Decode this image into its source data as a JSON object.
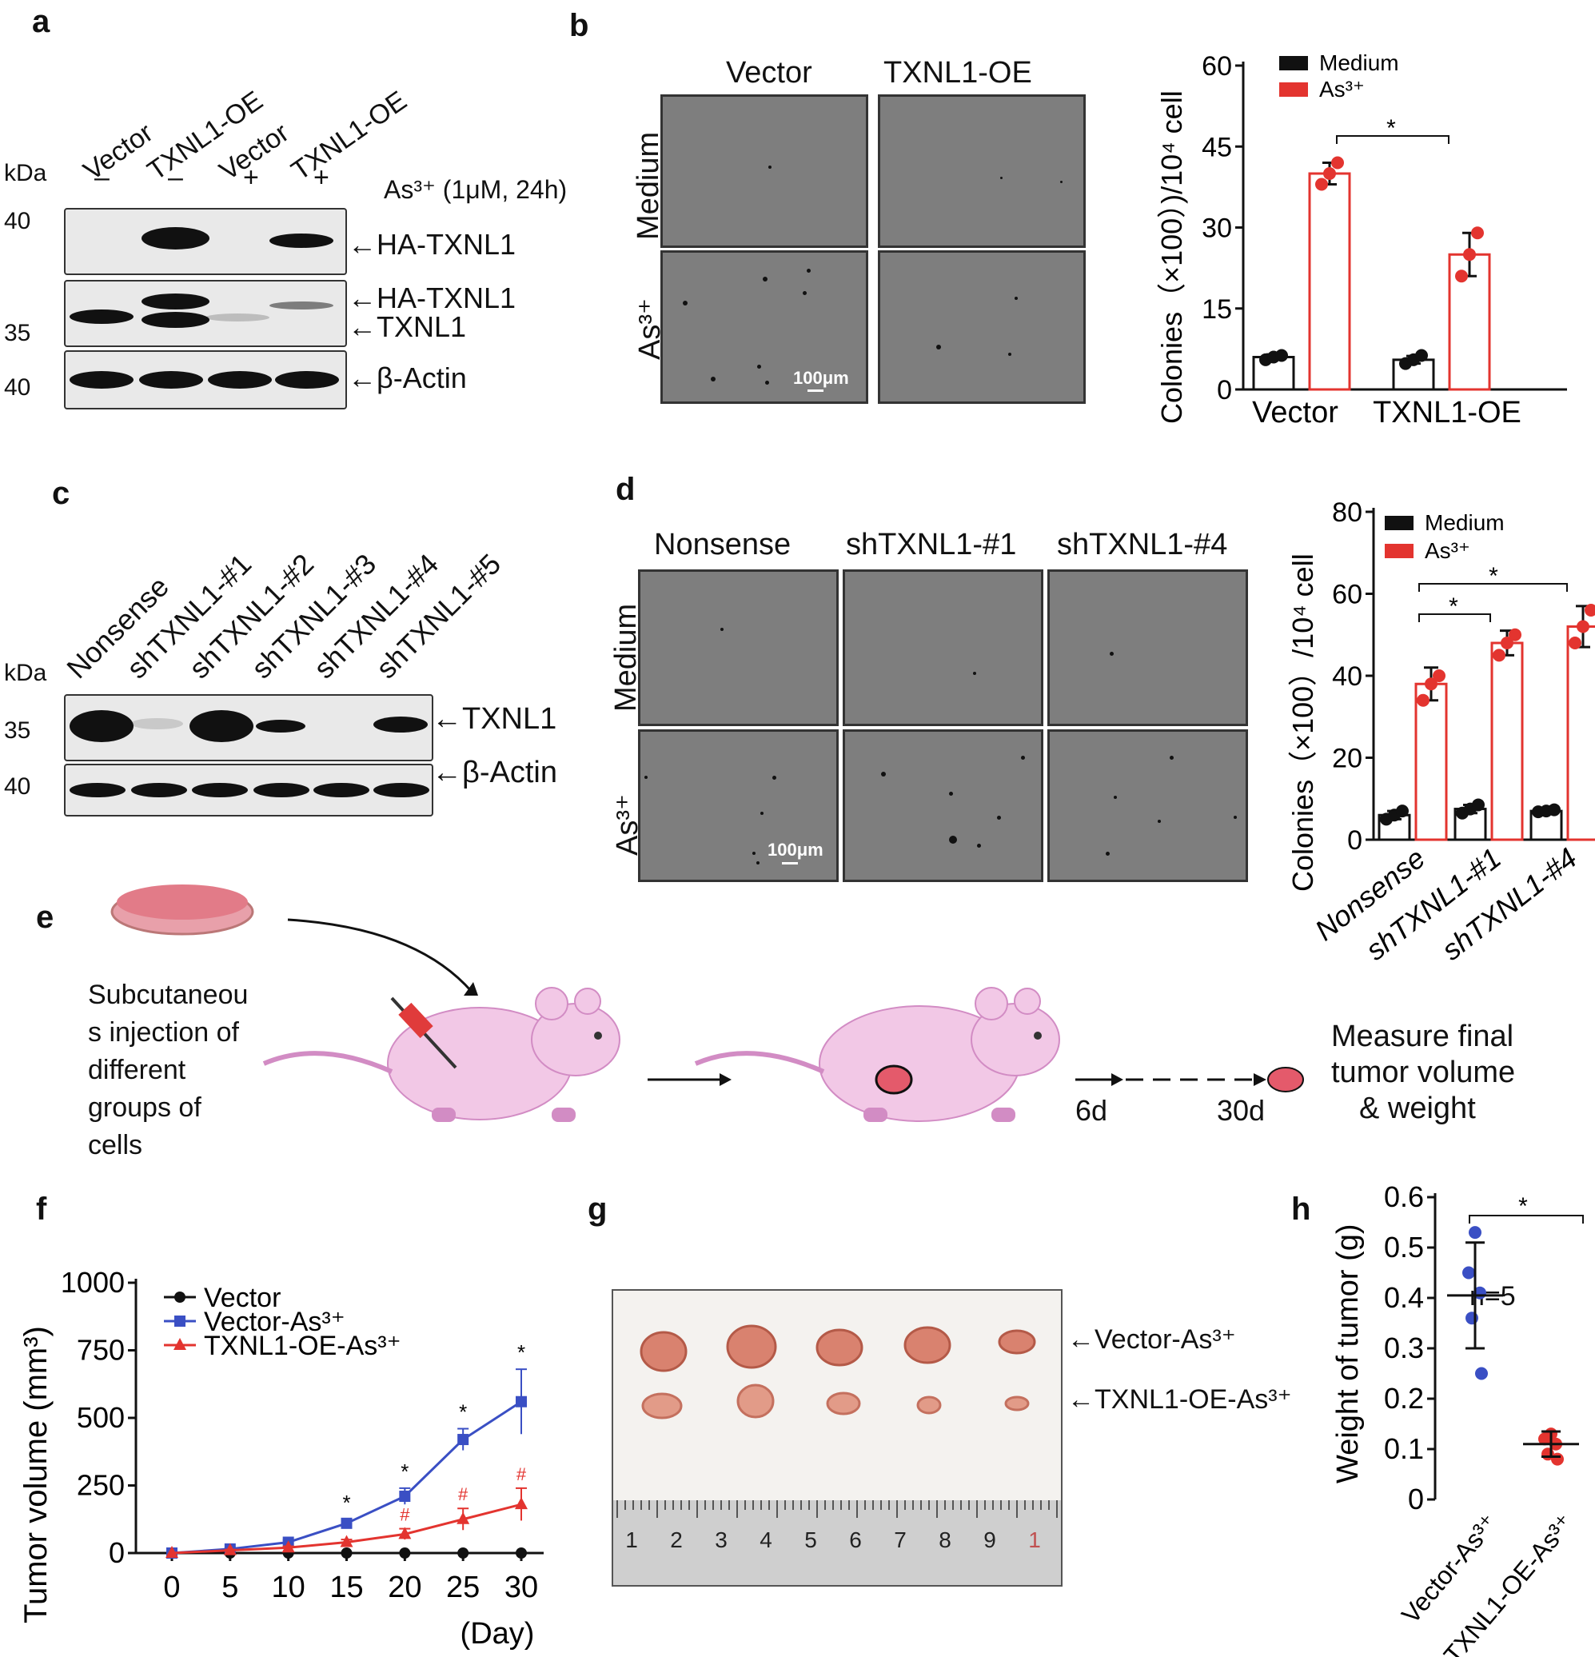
{
  "panels": {
    "a": {
      "label": "a",
      "lanes": [
        "Vector",
        "TXNL1-OE",
        "Vector",
        "TXNL1-OE"
      ],
      "signs": [
        "–",
        "–",
        "+",
        "+"
      ],
      "kda_title": "kDa",
      "treatment": "As³⁺ (1μM, 24h)",
      "markers": [
        "40",
        "35",
        "40"
      ],
      "band_labels": [
        "HA-TXNL1",
        "HA-TXNL1",
        "TXNL1",
        "β-Actin"
      ]
    },
    "b": {
      "label": "b",
      "columns": [
        "Vector",
        "TXNL1-OE"
      ],
      "rows": [
        "Medium",
        "As³⁺"
      ],
      "scale_bar": "100μm"
    },
    "c": {
      "label": "c",
      "lanes": [
        "Nonsense",
        "shTXNL1-#1",
        "shTXNL1-#2",
        "shTXNL1-#3",
        "shTXNL1-#4",
        "shTXNL1-#5"
      ],
      "kda_title": "kDa",
      "markers": [
        "35",
        "40"
      ],
      "band_labels": [
        "TXNL1",
        "β-Actin"
      ]
    },
    "d": {
      "label": "d",
      "columns": [
        "Nonsense",
        "shTXNL1-#1",
        "shTXNL1-#4"
      ],
      "rows": [
        "Medium",
        "As³⁺"
      ],
      "scale_bar": "100μm"
    },
    "e": {
      "label": "e",
      "step1": "Subcutaneous injection of different groups of cells",
      "step1_lines": [
        "Subcutaneou",
        "s injection of",
        "different",
        "groups of",
        "cells"
      ],
      "day_a": "6d",
      "day_b": "30d",
      "final_lines": [
        "Measure final",
        "tumor volume",
        "& weight"
      ]
    },
    "f": {
      "label": "f"
    },
    "g": {
      "label": "g",
      "row_labels": [
        "Vector-As³⁺",
        "TXNL1-OE-As³⁺"
      ],
      "ruler_numbers": [
        "1",
        "2",
        "3",
        "4",
        "5",
        "6",
        "7",
        "8",
        "9",
        "1"
      ]
    },
    "h": {
      "label": "h",
      "n_label": "n=5"
    }
  },
  "colors": {
    "black_series": "#111111",
    "red_series": "#e3342f",
    "blue_series": "#3a4fc4",
    "dish": "#e27b88",
    "mouse": "#f2c8e6"
  },
  "chart_data": [
    {
      "id": "b",
      "type": "bar",
      "categories": [
        "Vector",
        "TXNL1-OE"
      ],
      "series": [
        {
          "name": "Medium",
          "values": [
            6,
            5.5
          ],
          "error": [
            0.5,
            0.7
          ],
          "points": [
            [
              5.5,
              6,
              6.3
            ],
            [
              4.8,
              5.5,
              6.3
            ]
          ]
        },
        {
          "name": "As³⁺",
          "values": [
            40,
            25
          ],
          "error": [
            2,
            4
          ],
          "points": [
            [
              38,
              40,
              42
            ],
            [
              21,
              25,
              29
            ]
          ]
        }
      ],
      "ylabel": "Colonies（×100）)/10⁴ cell",
      "ylim": [
        0,
        60
      ],
      "yticks": [
        "0",
        "15",
        "30",
        "45",
        "60"
      ],
      "significance": [
        {
          "label": "*"
        }
      ]
    },
    {
      "id": "d",
      "type": "bar",
      "categories": [
        "Nonsense",
        "shTXNL1-#1",
        "shTXNL1-#4"
      ],
      "series": [
        {
          "name": "Medium",
          "values": [
            6,
            7.5,
            7
          ],
          "error": [
            1,
            1,
            0.5
          ],
          "points": [
            [
              5,
              6,
              7
            ],
            [
              6.5,
              7.5,
              8.5
            ],
            [
              6.8,
              7,
              7.3
            ]
          ]
        },
        {
          "name": "As³⁺",
          "values": [
            38,
            48,
            52
          ],
          "error": [
            4,
            3,
            5
          ],
          "points": [
            [
              34,
              38,
              40
            ],
            [
              45,
              48,
              50
            ],
            [
              48,
              52,
              56
            ]
          ]
        }
      ],
      "ylabel": "Colonies（×100）/10⁴ cell",
      "ylim": [
        0,
        80
      ],
      "yticks": [
        "0",
        "20",
        "40",
        "60",
        "80"
      ],
      "significance": [
        {
          "label": "*"
        },
        {
          "label": "*"
        }
      ]
    },
    {
      "id": "f",
      "type": "line",
      "x": [
        0,
        5,
        10,
        15,
        20,
        25,
        30
      ],
      "xticks": [
        "0",
        "5",
        "10",
        "15",
        "20",
        "25",
        "30"
      ],
      "xlabel": "(Day)",
      "ylabel": "Tumor volume (mm³)",
      "ylim": [
        0,
        1000
      ],
      "yticks": [
        "0",
        "250",
        "500",
        "750",
        "1000"
      ],
      "series": [
        {
          "name": "Vector",
          "values": [
            0,
            0,
            0,
            0,
            0,
            0,
            0
          ],
          "error": [
            0,
            0,
            0,
            0,
            0,
            0,
            0
          ]
        },
        {
          "name": "Vector-As³⁺",
          "values": [
            0,
            15,
            40,
            110,
            210,
            420,
            560
          ],
          "error": [
            0,
            3,
            8,
            15,
            30,
            40,
            120
          ]
        },
        {
          "name": "TXNL1-OE-As³⁺",
          "values": [
            0,
            10,
            20,
            40,
            70,
            125,
            180
          ],
          "error": [
            0,
            3,
            5,
            10,
            20,
            40,
            60
          ]
        }
      ],
      "annotations": [
        {
          "x": 15,
          "text": "*"
        },
        {
          "x": 20,
          "text": "*"
        },
        {
          "x": 25,
          "text": "*"
        },
        {
          "x": 30,
          "text": "*"
        },
        {
          "x": 20,
          "text": "#"
        },
        {
          "x": 25,
          "text": "#"
        },
        {
          "x": 30,
          "text": "#"
        }
      ]
    },
    {
      "id": "h",
      "type": "scatter",
      "categories": [
        "Vector-As³⁺",
        "TXNL1-OE-As³⁺"
      ],
      "ylabel": "Weight of tumor (g)",
      "ylim": [
        0,
        0.6
      ],
      "yticks": [
        "0",
        "0.1",
        "0.2",
        "0.3",
        "0.4",
        "0.5",
        "0.6"
      ],
      "series": [
        {
          "name": "Vector-As³⁺",
          "mean": 0.405,
          "sd": 0.105,
          "points": [
            0.53,
            0.45,
            0.41,
            0.36,
            0.25
          ]
        },
        {
          "name": "TXNL1-OE-As³⁺",
          "mean": 0.11,
          "sd": 0.025,
          "points": [
            0.13,
            0.12,
            0.11,
            0.09,
            0.08
          ]
        }
      ],
      "significance": [
        {
          "label": "*"
        }
      ]
    }
  ]
}
